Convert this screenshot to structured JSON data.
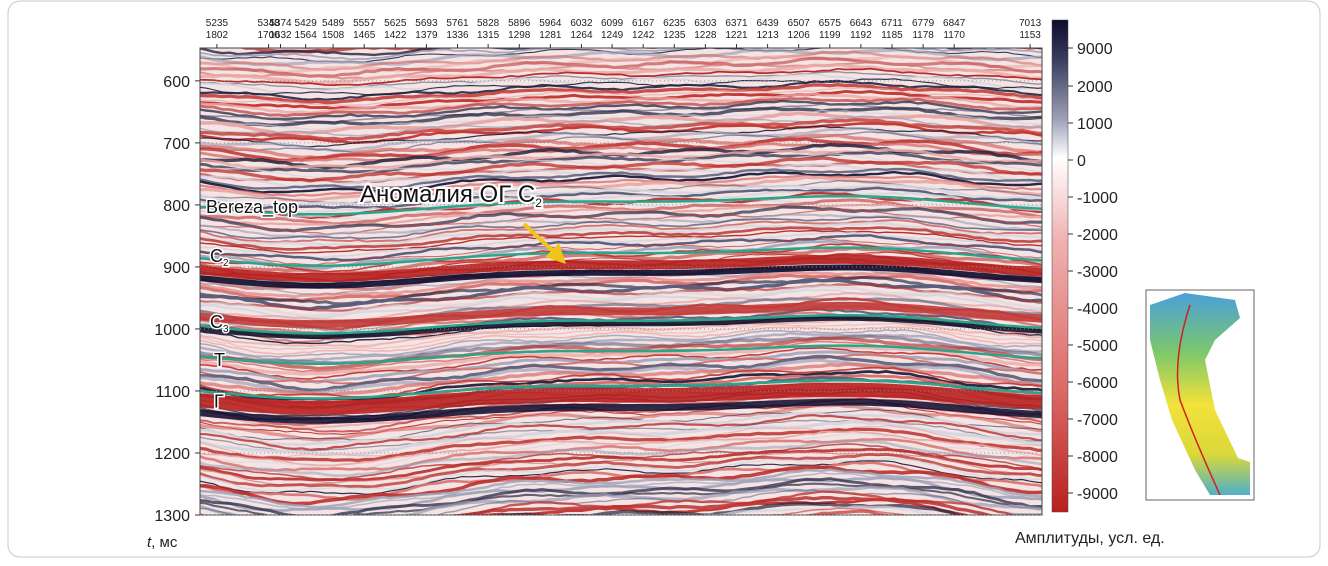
{
  "chart_data": {
    "type": "seismic",
    "ylim": [
      547,
      1300
    ],
    "yticks": [
      600,
      700,
      800,
      900,
      1000,
      1100,
      1200,
      1300
    ],
    "y_label_var": "t",
    "y_label_unit": ", мс",
    "xlim": [
      5198,
      7039
    ],
    "xticks": [
      {
        "cdp": 5235,
        "trace": 1802
      },
      {
        "cdp": 5348,
        "trace": 1700
      },
      {
        "cdp": 5374,
        "trace": 1632
      },
      {
        "cdp": 5429,
        "trace": 1564
      },
      {
        "cdp": 5489,
        "trace": 1508
      },
      {
        "cdp": 5557,
        "trace": 1465
      },
      {
        "cdp": 5625,
        "trace": 1422
      },
      {
        "cdp": 5693,
        "trace": 1379
      },
      {
        "cdp": 5761,
        "trace": 1336
      },
      {
        "cdp": 5828,
        "trace": 1315
      },
      {
        "cdp": 5896,
        "trace": 1298
      },
      {
        "cdp": 5964,
        "trace": 1281
      },
      {
        "cdp": 6032,
        "trace": 1264
      },
      {
        "cdp": 6099,
        "trace": 1249
      },
      {
        "cdp": 6167,
        "trace": 1242
      },
      {
        "cdp": 6235,
        "trace": 1235
      },
      {
        "cdp": 6303,
        "trace": 1228
      },
      {
        "cdp": 6371,
        "trace": 1221
      },
      {
        "cdp": 6439,
        "trace": 1213
      },
      {
        "cdp": 6507,
        "trace": 1206
      },
      {
        "cdp": 6575,
        "trace": 1199
      },
      {
        "cdp": 6643,
        "trace": 1192
      },
      {
        "cdp": 6711,
        "trace": 1185
      },
      {
        "cdp": 6779,
        "trace": 1178
      },
      {
        "cdp": 6847,
        "trace": 1170
      },
      {
        "cdp": 7013,
        "trace": 1153
      }
    ],
    "colorbar_ticks": [
      9000,
      2000,
      1000,
      0,
      -1000,
      -2000,
      -3000,
      -4000,
      -5000,
      -6000,
      -7000,
      -8000,
      -9000
    ],
    "colorbar_label": "Амплитуды, усл. ед.",
    "horizons": [
      {
        "text": "Bereza_top"
      },
      {
        "text": "C",
        "sub": "2"
      },
      {
        "text": "C",
        "sub": "3"
      },
      {
        "text": "T"
      },
      {
        "text": "Г"
      }
    ],
    "annotation": {
      "text": "Аномалия ОГ С",
      "sub": "2"
    }
  }
}
